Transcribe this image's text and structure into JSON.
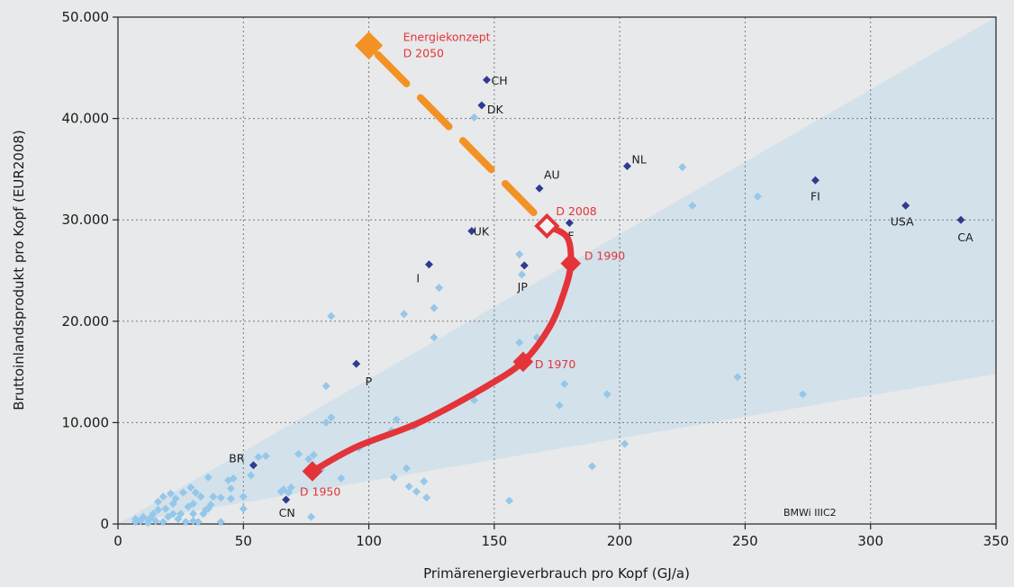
{
  "chart_data": {
    "type": "scatter",
    "title": "",
    "xlabel": "Primärenergieverbrauch pro Kopf (GJ/a)",
    "ylabel": "Bruttoinlandsprodukt pro Kopf (EUR2008)",
    "xlim": [
      0,
      350
    ],
    "ylim": [
      0,
      50000
    ],
    "x_ticks": [
      0,
      50,
      100,
      150,
      200,
      250,
      300,
      350
    ],
    "x_tick_labels": [
      "0",
      "50",
      "100",
      "150",
      "200",
      "250",
      "300",
      "350"
    ],
    "y_ticks": [
      0,
      10000,
      20000,
      30000,
      40000,
      50000
    ],
    "y_tick_labels": [
      "0",
      "10.000",
      "20.000",
      "30.000",
      "40.000",
      "50.000"
    ],
    "grid": true,
    "note": "BMWi IIIC2",
    "colors": {
      "background": "#e8e9ea",
      "band": "#d3e1ea",
      "country_point": "#2f3a91",
      "other_point": "#94c7ea",
      "germany_path": "#e3343a",
      "target_path": "#f39224"
    },
    "labeled_countries": [
      {
        "label": "CH",
        "x": 147,
        "y": 43800
      },
      {
        "label": "DK",
        "x": 145,
        "y": 41300
      },
      {
        "label": "AU",
        "x": 168,
        "y": 33100
      },
      {
        "label": "NL",
        "x": 203,
        "y": 35300
      },
      {
        "label": "FI",
        "x": 278,
        "y": 33900
      },
      {
        "label": "USA",
        "x": 314,
        "y": 31400
      },
      {
        "label": "CA",
        "x": 336,
        "y": 30000
      },
      {
        "label": "F",
        "x": 180,
        "y": 29700
      },
      {
        "label": "UK",
        "x": 141,
        "y": 28900
      },
      {
        "label": "JP",
        "x": 162,
        "y": 25500
      },
      {
        "label": "I",
        "x": 124,
        "y": 25600
      },
      {
        "label": "P",
        "x": 95,
        "y": 15800
      },
      {
        "label": "BR",
        "x": 54,
        "y": 5800
      },
      {
        "label": "CN",
        "x": 67,
        "y": 2400
      }
    ],
    "other_countries": [
      [
        142,
        40100
      ],
      [
        170,
        29400
      ],
      [
        225,
        35200
      ],
      [
        229,
        31400
      ],
      [
        255,
        32300
      ],
      [
        160,
        26600
      ],
      [
        161,
        24600
      ],
      [
        128,
        23300
      ],
      [
        126,
        21300
      ],
      [
        126,
        18400
      ],
      [
        114,
        20700
      ],
      [
        85,
        20500
      ],
      [
        167,
        18400
      ],
      [
        160,
        17900
      ],
      [
        178,
        13800
      ],
      [
        195,
        12800
      ],
      [
        176,
        11700
      ],
      [
        142,
        12200
      ],
      [
        120,
        10000
      ],
      [
        111,
        10300
      ],
      [
        118,
        9600
      ],
      [
        109,
        9200
      ],
      [
        96,
        7500
      ],
      [
        83,
        13600
      ],
      [
        83,
        10000
      ],
      [
        85,
        10500
      ],
      [
        81,
        5400
      ],
      [
        76,
        6400
      ],
      [
        78,
        6800
      ],
      [
        72,
        6900
      ],
      [
        56,
        6600
      ],
      [
        59,
        6700
      ],
      [
        53,
        4800
      ],
      [
        89,
        4500
      ],
      [
        110,
        4600
      ],
      [
        115,
        5500
      ],
      [
        116,
        3700
      ],
      [
        119,
        3200
      ],
      [
        122,
        4200
      ],
      [
        123,
        2600
      ],
      [
        156,
        2300
      ],
      [
        189,
        5700
      ],
      [
        202,
        7900
      ],
      [
        247,
        14500
      ],
      [
        273,
        12800
      ],
      [
        66,
        3400
      ],
      [
        68,
        3100
      ],
      [
        69,
        3600
      ],
      [
        65,
        3200
      ],
      [
        77,
        700
      ],
      [
        50,
        1500
      ],
      [
        50,
        2700
      ],
      [
        45,
        2500
      ],
      [
        45,
        3500
      ],
      [
        44,
        4300
      ],
      [
        46,
        4500
      ],
      [
        36,
        4600
      ],
      [
        33,
        2700
      ],
      [
        31,
        3100
      ],
      [
        29,
        3600
      ],
      [
        26,
        3100
      ],
      [
        38,
        2700
      ],
      [
        41,
        2600
      ],
      [
        37,
        1900
      ],
      [
        35,
        1400
      ],
      [
        30,
        2000
      ],
      [
        30,
        1000
      ],
      [
        28,
        1700
      ],
      [
        25,
        1000
      ],
      [
        23,
        2500
      ],
      [
        22,
        2000
      ],
      [
        21,
        3000
      ],
      [
        24,
        500
      ],
      [
        19,
        1500
      ],
      [
        18,
        2700
      ],
      [
        16,
        2200
      ],
      [
        16,
        1400
      ],
      [
        14,
        1000
      ],
      [
        13,
        600
      ],
      [
        12,
        400
      ],
      [
        10,
        700
      ],
      [
        9,
        300
      ],
      [
        7,
        200
      ],
      [
        7,
        500
      ],
      [
        12,
        100
      ],
      [
        15,
        300
      ],
      [
        18,
        200
      ],
      [
        20,
        700
      ],
      [
        22,
        1000
      ],
      [
        27,
        200
      ],
      [
        30,
        300
      ],
      [
        32,
        200
      ],
      [
        34,
        1000
      ],
      [
        36,
        1500
      ],
      [
        41,
        200
      ]
    ],
    "germany_path": [
      {
        "label": "D 1950",
        "x": 77.5,
        "y": 5200,
        "labeled": true
      },
      {
        "x": 95,
        "y": 7600
      },
      {
        "x": 120,
        "y": 10000
      },
      {
        "x": 145,
        "y": 13300
      },
      {
        "label": "D 1970",
        "x": 161.5,
        "y": 16000,
        "labeled": true
      },
      {
        "x": 172,
        "y": 19400
      },
      {
        "x": 178,
        "y": 23000
      },
      {
        "label": "D 1990",
        "x": 180.5,
        "y": 25700,
        "labeled": true
      },
      {
        "x": 179,
        "y": 28300
      },
      {
        "label": "D 2008",
        "x": 171,
        "y": 29400,
        "labeled": true
      }
    ],
    "target": {
      "label_line1": "Energiekonzept",
      "label_line2": "D 2050",
      "x": 100,
      "y": 47200
    },
    "target_path": [
      [
        171,
        29400
      ],
      [
        100,
        47200
      ]
    ]
  }
}
